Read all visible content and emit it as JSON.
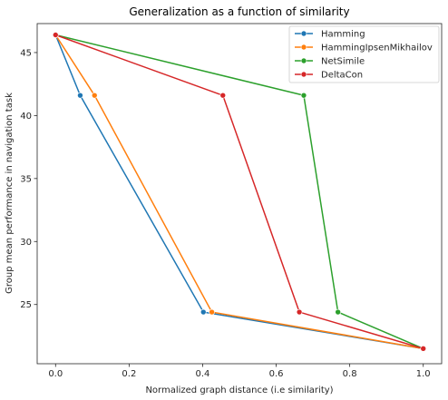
{
  "chart_data": {
    "type": "line",
    "title": "Generalization as a function of similarity",
    "xlabel": "Normalized graph distance (i.e similarity)",
    "ylabel": "Group mean performance in navigation task",
    "xlim": [
      -0.05,
      1.05
    ],
    "ylim": [
      20.3,
      47.3
    ],
    "xticks": [
      0.0,
      0.2,
      0.4,
      0.6,
      0.8,
      1.0
    ],
    "xtick_labels": [
      "0.0",
      "0.2",
      "0.4",
      "0.6",
      "0.8",
      "1.0"
    ],
    "yticks": [
      25,
      30,
      35,
      40,
      45
    ],
    "ytick_labels": [
      "25",
      "30",
      "35",
      "40",
      "45"
    ],
    "grid": false,
    "legend_position": "top-right",
    "marker": "circle",
    "series": [
      {
        "name": "Hamming",
        "color": "#1f77b4",
        "x": [
          0.0,
          0.067,
          0.402,
          1.0
        ],
        "y": [
          46.4,
          41.6,
          24.4,
          21.5
        ]
      },
      {
        "name": "HammingIpsenMikhailov",
        "color": "#ff7f0e",
        "x": [
          0.0,
          0.106,
          0.425,
          1.0
        ],
        "y": [
          46.4,
          41.6,
          24.4,
          21.5
        ]
      },
      {
        "name": "NetSimile",
        "color": "#2ca02c",
        "x": [
          0.0,
          0.675,
          0.768,
          1.0
        ],
        "y": [
          46.4,
          41.6,
          24.4,
          21.5
        ]
      },
      {
        "name": "DeltaCon",
        "color": "#d62728",
        "x": [
          0.0,
          0.455,
          0.663,
          1.0
        ],
        "y": [
          46.4,
          41.6,
          24.4,
          21.5
        ]
      }
    ]
  }
}
